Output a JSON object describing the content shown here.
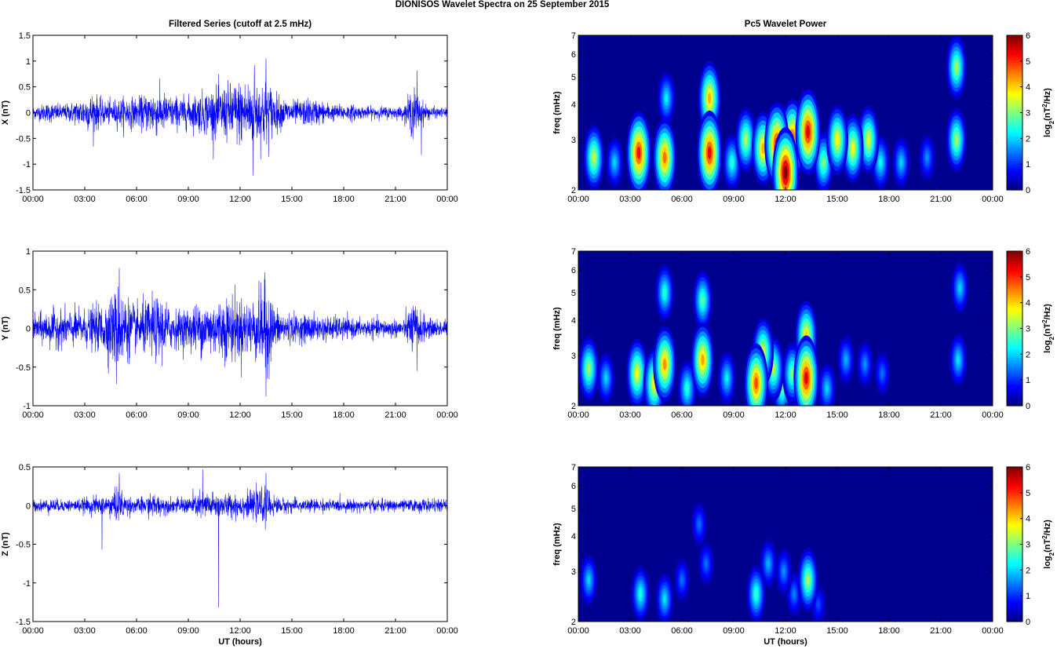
{
  "figure": {
    "title": "DIONISOS Wavelet Spectra on 25 September 2015"
  },
  "colors": {
    "series": "#0000ff",
    "axes": "#000000",
    "spectrum_background": "#00008f",
    "colormap": "jet"
  },
  "chart_data": [
    {
      "type": "line",
      "panel": "X-filtered",
      "title": "Filtered Series (cutoff at 2.5 mHz)",
      "xlabel": "",
      "ylabel": "X (nT)",
      "xlim": [
        "00:00",
        "24:00"
      ],
      "ylim": [
        -1.5,
        1.5
      ],
      "xticks": [
        "00:00",
        "03:00",
        "06:00",
        "09:00",
        "12:00",
        "15:00",
        "18:00",
        "21:00",
        "00:00"
      ],
      "yticks": [
        "-1.5",
        "-1",
        "-0.5",
        "0",
        "0.5",
        "1",
        "1.5"
      ],
      "yticks_values": [
        -1.5,
        -1,
        -0.5,
        0,
        0.5,
        1,
        1.5
      ],
      "envelope_x_hours": [
        0,
        0.5,
        1,
        1.5,
        2,
        2.5,
        3,
        3.5,
        4,
        4.5,
        5,
        5.5,
        6,
        6.5,
        7,
        7.5,
        8,
        8.5,
        9,
        9.5,
        10,
        10.5,
        11,
        11.5,
        12,
        12.5,
        13,
        13.5,
        14,
        14.5,
        15,
        15.5,
        16,
        16.5,
        17,
        17.5,
        18,
        18.5,
        19,
        19.5,
        20,
        20.5,
        21,
        21.5,
        22,
        22.5,
        23,
        23.5,
        24
      ],
      "envelope_amplitude_nT": [
        0.15,
        0.2,
        0.25,
        0.2,
        0.22,
        0.3,
        0.4,
        0.5,
        0.3,
        0.3,
        0.35,
        0.4,
        0.35,
        0.45,
        0.6,
        0.5,
        0.4,
        0.4,
        0.4,
        0.45,
        0.55,
        0.6,
        0.65,
        0.75,
        0.8,
        0.85,
        0.8,
        0.9,
        0.5,
        0.35,
        0.3,
        0.3,
        0.35,
        0.3,
        0.25,
        0.2,
        0.2,
        0.2,
        0.15,
        0.15,
        0.15,
        0.15,
        0.15,
        0.15,
        0.65,
        0.3,
        0.15,
        0.12,
        0.12
      ],
      "extremes": [
        {
          "x": "13:30",
          "y": 1.05
        },
        {
          "x": "12:50",
          "y": 0.92
        },
        {
          "x": "12:45",
          "y": -1.22
        },
        {
          "x": "22:15",
          "y": 0.82
        },
        {
          "x": "22:30",
          "y": -0.82
        }
      ]
    },
    {
      "type": "line",
      "panel": "Y-filtered",
      "title": "",
      "xlabel": "",
      "ylabel": "Y (nT)",
      "xlim": [
        "00:00",
        "24:00"
      ],
      "ylim": [
        -1,
        1
      ],
      "xticks": [
        "00:00",
        "03:00",
        "06:00",
        "09:00",
        "12:00",
        "15:00",
        "18:00",
        "21:00",
        "00:00"
      ],
      "yticks": [
        "-1",
        "-0.5",
        "0",
        "0.5",
        "1"
      ],
      "yticks_values": [
        -1,
        -0.5,
        0,
        0.5,
        1
      ],
      "envelope_x_hours": [
        0,
        0.5,
        1,
        1.5,
        2,
        2.5,
        3,
        3.5,
        4,
        4.5,
        5,
        5.5,
        6,
        6.5,
        7,
        7.5,
        8,
        8.5,
        9,
        9.5,
        10,
        10.5,
        11,
        11.5,
        12,
        12.5,
        13,
        13.5,
        14,
        14.5,
        15,
        15.5,
        16,
        16.5,
        17,
        17.5,
        18,
        18.5,
        19,
        19.5,
        20,
        20.5,
        21,
        21.5,
        22,
        22.5,
        23,
        23.5,
        24
      ],
      "envelope_amplitude_nT": [
        0.2,
        0.25,
        0.3,
        0.3,
        0.3,
        0.3,
        0.3,
        0.35,
        0.4,
        0.55,
        0.7,
        0.5,
        0.35,
        0.45,
        0.5,
        0.5,
        0.35,
        0.3,
        0.35,
        0.4,
        0.45,
        0.45,
        0.5,
        0.55,
        0.5,
        0.45,
        0.55,
        0.8,
        0.35,
        0.25,
        0.25,
        0.2,
        0.25,
        0.2,
        0.2,
        0.2,
        0.18,
        0.15,
        0.15,
        0.15,
        0.15,
        0.15,
        0.15,
        0.15,
        0.45,
        0.25,
        0.15,
        0.15,
        0.15
      ],
      "extremes": [
        {
          "x": "13:30",
          "y": 0.86
        },
        {
          "x": "13:30",
          "y": -0.88
        },
        {
          "x": "05:00",
          "y": 0.78
        },
        {
          "x": "04:50",
          "y": -0.72
        },
        {
          "x": "22:15",
          "y": -0.55
        }
      ]
    },
    {
      "type": "line",
      "panel": "Z-filtered",
      "title": "",
      "xlabel": "UT (hours)",
      "ylabel": "Z (nT)",
      "xlim": [
        "00:00",
        "24:00"
      ],
      "ylim": [
        -1.5,
        0.5
      ],
      "xticks": [
        "00:00",
        "03:00",
        "06:00",
        "09:00",
        "12:00",
        "15:00",
        "18:00",
        "21:00",
        "00:00"
      ],
      "yticks": [
        "-1.5",
        "-1",
        "-0.5",
        "0",
        "0.5"
      ],
      "yticks_values": [
        -1.5,
        -1,
        -0.5,
        0,
        0.5
      ],
      "envelope_x_hours": [
        0,
        0.5,
        1,
        1.5,
        2,
        2.5,
        3,
        3.5,
        4,
        4.5,
        5,
        5.5,
        6,
        6.5,
        7,
        7.5,
        8,
        8.5,
        9,
        9.5,
        10,
        10.5,
        11,
        11.5,
        12,
        12.5,
        13,
        13.5,
        14,
        14.5,
        15,
        15.5,
        16,
        16.5,
        17,
        17.5,
        18,
        18.5,
        19,
        19.5,
        20,
        20.5,
        21,
        21.5,
        22,
        22.5,
        23,
        23.5,
        24
      ],
      "envelope_amplitude_nT": [
        0.1,
        0.1,
        0.12,
        0.1,
        0.1,
        0.1,
        0.12,
        0.15,
        0.15,
        0.2,
        0.3,
        0.15,
        0.12,
        0.15,
        0.2,
        0.15,
        0.12,
        0.12,
        0.15,
        0.2,
        0.25,
        0.2,
        0.2,
        0.2,
        0.2,
        0.2,
        0.25,
        0.3,
        0.15,
        0.12,
        0.12,
        0.1,
        0.12,
        0.1,
        0.1,
        0.1,
        0.1,
        0.1,
        0.1,
        0.1,
        0.1,
        0.1,
        0.1,
        0.1,
        0.1,
        0.12,
        0.1,
        0.1,
        0.1
      ],
      "extremes": [
        {
          "x": "10:45",
          "y": -1.32
        },
        {
          "x": "04:00",
          "y": -0.57
        },
        {
          "x": "05:00",
          "y": 0.42
        },
        {
          "x": "13:30",
          "y": 0.42
        },
        {
          "x": "09:50",
          "y": 0.47
        }
      ]
    },
    {
      "type": "heatmap",
      "panel": "X-wavelet",
      "title": "Pc5 Wavelet Power",
      "xlabel": "",
      "ylabel": "freq (mHz)",
      "colorbar_label": "log2(nT^2/Hz)",
      "xlim": [
        "00:00",
        "24:00"
      ],
      "ylim_mHz": [
        2,
        7
      ],
      "yscale": "log",
      "clim": [
        0,
        6
      ],
      "colorbar_ticks": [
        "0",
        "1",
        "2",
        "3",
        "4",
        "5",
        "6"
      ],
      "xticks": [
        "00:00",
        "03:00",
        "06:00",
        "09:00",
        "12:00",
        "15:00",
        "18:00",
        "21:00",
        "00:00"
      ],
      "yticks": [
        "2",
        "3",
        "4",
        "5",
        "6",
        "7"
      ],
      "yticks_values": [
        2,
        3,
        4,
        5,
        6,
        7
      ],
      "power_blobs": [
        {
          "t_hours": 0.9,
          "f_mHz": 2.6,
          "power": 3.4
        },
        {
          "t_hours": 2.1,
          "f_mHz": 2.5,
          "power": 2.0
        },
        {
          "t_hours": 3.5,
          "f_mHz": 2.7,
          "power": 5.2
        },
        {
          "t_hours": 5.0,
          "f_mHz": 2.6,
          "power": 4.6
        },
        {
          "t_hours": 5.1,
          "f_mHz": 4.2,
          "power": 2.2
        },
        {
          "t_hours": 7.6,
          "f_mHz": 2.7,
          "power": 5.3
        },
        {
          "t_hours": 7.6,
          "f_mHz": 4.2,
          "power": 4.2
        },
        {
          "t_hours": 8.9,
          "f_mHz": 2.5,
          "power": 2.5
        },
        {
          "t_hours": 9.7,
          "f_mHz": 3.0,
          "power": 3.3
        },
        {
          "t_hours": 10.7,
          "f_mHz": 2.8,
          "power": 4.2
        },
        {
          "t_hours": 11.5,
          "f_mHz": 2.9,
          "power": 5.2
        },
        {
          "t_hours": 12.0,
          "f_mHz": 2.3,
          "power": 6.0
        },
        {
          "t_hours": 12.4,
          "f_mHz": 3.0,
          "power": 5.0
        },
        {
          "t_hours": 13.3,
          "f_mHz": 3.2,
          "power": 5.4
        },
        {
          "t_hours": 14.2,
          "f_mHz": 2.5,
          "power": 3.0
        },
        {
          "t_hours": 15.0,
          "f_mHz": 3.0,
          "power": 3.8
        },
        {
          "t_hours": 15.9,
          "f_mHz": 2.8,
          "power": 3.7
        },
        {
          "t_hours": 16.8,
          "f_mHz": 3.0,
          "power": 3.6
        },
        {
          "t_hours": 17.5,
          "f_mHz": 2.5,
          "power": 2.3
        },
        {
          "t_hours": 18.7,
          "f_mHz": 2.5,
          "power": 2.0
        },
        {
          "t_hours": 20.2,
          "f_mHz": 2.6,
          "power": 1.6
        },
        {
          "t_hours": 21.9,
          "f_mHz": 3.0,
          "power": 3.2
        },
        {
          "t_hours": 21.9,
          "f_mHz": 5.4,
          "power": 3.2
        }
      ]
    },
    {
      "type": "heatmap",
      "panel": "Y-wavelet",
      "title": "",
      "xlabel": "",
      "ylabel": "freq (mHz)",
      "colorbar_label": "log2(nT^2/Hz)",
      "xlim": [
        "00:00",
        "24:00"
      ],
      "ylim_mHz": [
        2,
        7
      ],
      "yscale": "log",
      "clim": [
        0,
        6
      ],
      "colorbar_ticks": [
        "0",
        "1",
        "2",
        "3",
        "4",
        "5",
        "6"
      ],
      "xticks": [
        "00:00",
        "03:00",
        "06:00",
        "09:00",
        "12:00",
        "15:00",
        "18:00",
        "21:00",
        "00:00"
      ],
      "yticks": [
        "2",
        "3",
        "4",
        "5",
        "6",
        "7"
      ],
      "yticks_values": [
        2,
        3,
        4,
        5,
        6,
        7
      ],
      "power_blobs": [
        {
          "t_hours": 0.6,
          "f_mHz": 2.7,
          "power": 3.2
        },
        {
          "t_hours": 1.6,
          "f_mHz": 2.5,
          "power": 2.0
        },
        {
          "t_hours": 3.4,
          "f_mHz": 2.6,
          "power": 3.7
        },
        {
          "t_hours": 4.4,
          "f_mHz": 2.4,
          "power": 3.8
        },
        {
          "t_hours": 5.0,
          "f_mHz": 2.8,
          "power": 4.4
        },
        {
          "t_hours": 5.0,
          "f_mHz": 5.0,
          "power": 2.5
        },
        {
          "t_hours": 6.3,
          "f_mHz": 2.3,
          "power": 2.5
        },
        {
          "t_hours": 7.2,
          "f_mHz": 2.9,
          "power": 4.3
        },
        {
          "t_hours": 7.2,
          "f_mHz": 4.7,
          "power": 2.8
        },
        {
          "t_hours": 8.6,
          "f_mHz": 2.5,
          "power": 2.2
        },
        {
          "t_hours": 10.3,
          "f_mHz": 2.4,
          "power": 4.8
        },
        {
          "t_hours": 10.7,
          "f_mHz": 3.1,
          "power": 3.6
        },
        {
          "t_hours": 11.3,
          "f_mHz": 2.7,
          "power": 3.3
        },
        {
          "t_hours": 11.8,
          "f_mHz": 2.3,
          "power": 2.8
        },
        {
          "t_hours": 12.4,
          "f_mHz": 2.6,
          "power": 3.0
        },
        {
          "t_hours": 13.2,
          "f_mHz": 2.5,
          "power": 5.4
        },
        {
          "t_hours": 13.2,
          "f_mHz": 3.5,
          "power": 4.0
        },
        {
          "t_hours": 14.4,
          "f_mHz": 2.3,
          "power": 2.0
        },
        {
          "t_hours": 15.5,
          "f_mHz": 2.9,
          "power": 1.8
        },
        {
          "t_hours": 16.6,
          "f_mHz": 2.8,
          "power": 1.6
        },
        {
          "t_hours": 17.6,
          "f_mHz": 2.6,
          "power": 1.4
        },
        {
          "t_hours": 22.0,
          "f_mHz": 2.9,
          "power": 2.1
        },
        {
          "t_hours": 22.1,
          "f_mHz": 5.2,
          "power": 2.0
        }
      ]
    },
    {
      "type": "heatmap",
      "panel": "Z-wavelet",
      "title": "",
      "xlabel": "UT (hours)",
      "ylabel": "freq (mHz)",
      "colorbar_label": "log2(nT^2/Hz)",
      "xlim": [
        "00:00",
        "24:00"
      ],
      "ylim_mHz": [
        2,
        7
      ],
      "yscale": "log",
      "clim": [
        0,
        6
      ],
      "colorbar_ticks": [
        "0",
        "1",
        "2",
        "3",
        "4",
        "5",
        "6"
      ],
      "xticks": [
        "00:00",
        "03:00",
        "06:00",
        "09:00",
        "12:00",
        "15:00",
        "18:00",
        "21:00",
        "00:00"
      ],
      "yticks": [
        "2",
        "3",
        "4",
        "5",
        "6",
        "7"
      ],
      "yticks_values": [
        2,
        3,
        4,
        5,
        6,
        7
      ],
      "power_blobs": [
        {
          "t_hours": 0.6,
          "f_mHz": 2.8,
          "power": 2.0
        },
        {
          "t_hours": 3.6,
          "f_mHz": 2.5,
          "power": 2.4
        },
        {
          "t_hours": 5.0,
          "f_mHz": 2.4,
          "power": 2.1
        },
        {
          "t_hours": 6.0,
          "f_mHz": 2.8,
          "power": 1.4
        },
        {
          "t_hours": 7.0,
          "f_mHz": 4.4,
          "power": 1.4
        },
        {
          "t_hours": 7.4,
          "f_mHz": 3.2,
          "power": 1.4
        },
        {
          "t_hours": 10.3,
          "f_mHz": 2.5,
          "power": 2.6
        },
        {
          "t_hours": 11.0,
          "f_mHz": 3.2,
          "power": 1.8
        },
        {
          "t_hours": 11.9,
          "f_mHz": 3.0,
          "power": 1.6
        },
        {
          "t_hours": 12.5,
          "f_mHz": 2.5,
          "power": 1.5
        },
        {
          "t_hours": 13.3,
          "f_mHz": 2.8,
          "power": 3.2
        },
        {
          "t_hours": 13.9,
          "f_mHz": 2.3,
          "power": 1.2
        }
      ]
    }
  ]
}
